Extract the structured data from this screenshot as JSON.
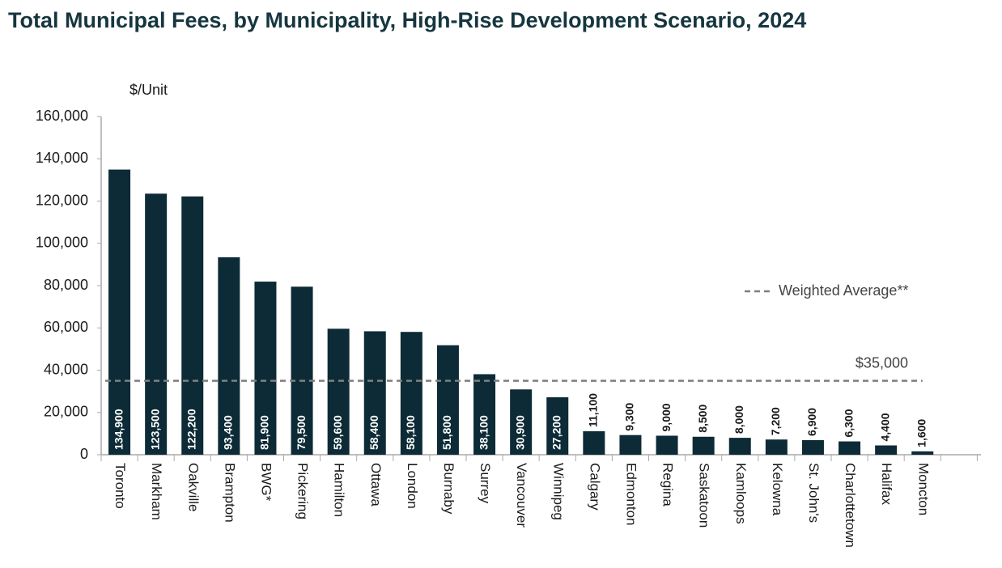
{
  "chart_data": {
    "type": "bar",
    "title": "Total Municipal Fees, by Municipality, High-Rise Development Scenario, 2024",
    "y_label": "$/Unit",
    "categories": [
      "Toronto",
      "Markham",
      "Oakville",
      "Brampton",
      "BWG*",
      "Pickering",
      "Hamilton",
      "Ottawa",
      "London",
      "Burnaby",
      "Surrey",
      "Vancouver",
      "Winnipeg",
      "Calgary",
      "Edmonton",
      "Regina",
      "Saskatoon",
      "Kamloops",
      "Kelowna",
      "St. John's",
      "Charlottetown",
      "Halifax",
      "Moncton"
    ],
    "values": [
      134900,
      123500,
      122200,
      93400,
      81900,
      79500,
      59600,
      58400,
      58100,
      51800,
      38100,
      30900,
      27200,
      11100,
      9300,
      9000,
      8500,
      8000,
      7200,
      6900,
      6300,
      4400,
      1600
    ],
    "value_labels": [
      "134,900",
      "123,500",
      "122,200",
      "93,400",
      "81,900",
      "79,500",
      "59,600",
      "58,400",
      "58,100",
      "51,800",
      "38,100",
      "30,900",
      "27,200",
      "11,100",
      "9,300",
      "9,000",
      "8,500",
      "8,000",
      "7,200",
      "6,900",
      "6,300",
      "4,400",
      "1,600"
    ],
    "color": "#0d2b36",
    "ylim": [
      0,
      160000
    ],
    "yticks": [
      0,
      {
        "value": 20000,
        "label": "20,000"
      },
      {
        "value": 40000,
        "label": "40,000"
      },
      {
        "value": 60000,
        "label": "60,000"
      },
      {
        "value": 80000,
        "label": "80,000"
      },
      {
        "value": 100000,
        "label": "100,000"
      },
      {
        "value": 120000,
        "label": "120,000"
      },
      {
        "value": 140000,
        "label": "140,000"
      },
      {
        "value": 160000,
        "label": "160,000"
      }
    ],
    "grid": false,
    "reference_line": {
      "name": "Weighted Average**",
      "value": 35000,
      "label": "$35,000",
      "color": "#7f7f7f"
    }
  }
}
